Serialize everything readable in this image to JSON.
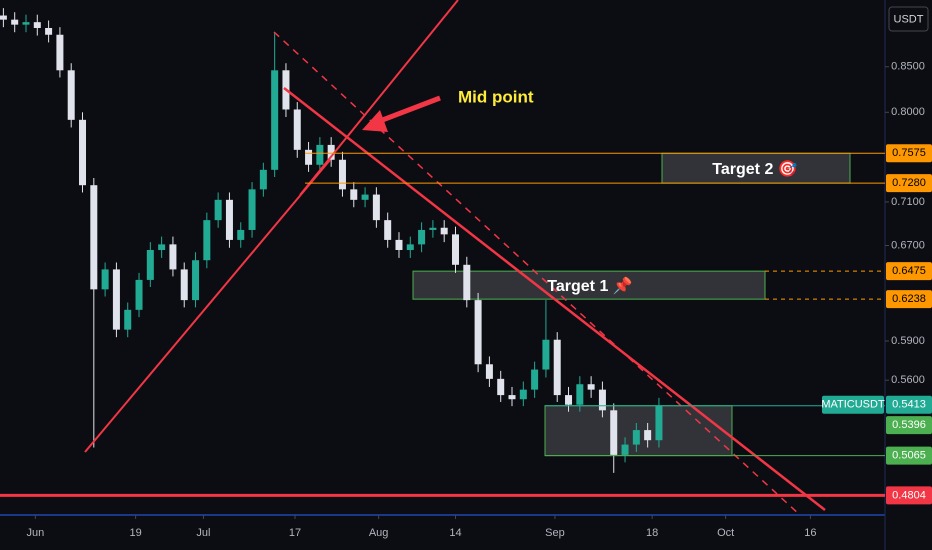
{
  "chart_data": {
    "type": "candlestick",
    "symbol": "MATICUSDT",
    "currency": "USDT",
    "log_scale": true,
    "up_color": "#22ab94",
    "down_color": "#e0e3eb",
    "series": {
      "open": [
        0.91,
        0.905,
        0.899,
        0.902,
        0.895,
        0.887,
        0.846,
        0.792,
        0.726,
        0.632,
        0.649,
        0.599,
        0.615,
        0.64,
        0.666,
        0.671,
        0.649,
        0.623,
        0.657,
        0.693,
        0.712,
        0.675,
        0.684,
        0.722,
        0.741,
        0.846,
        0.803,
        0.761,
        0.746,
        0.766,
        0.751,
        0.722,
        0.712,
        0.717,
        0.693,
        0.675,
        0.666,
        0.671,
        0.684,
        0.686,
        0.68,
        0.653,
        0.623,
        0.572,
        0.561,
        0.549,
        0.546,
        0.553,
        0.568,
        0.591,
        0.549,
        0.542,
        0.557,
        0.553,
        0.538,
        0.507,
        0.514,
        0.524,
        0.517
      ],
      "high": [
        0.919,
        0.914,
        0.911,
        0.911,
        0.904,
        0.896,
        0.854,
        0.8,
        0.733,
        0.655,
        0.655,
        0.621,
        0.646,
        0.673,
        0.678,
        0.678,
        0.655,
        0.664,
        0.7,
        0.719,
        0.719,
        0.691,
        0.729,
        0.748,
        0.889,
        0.854,
        0.811,
        0.769,
        0.774,
        0.774,
        0.759,
        0.729,
        0.724,
        0.724,
        0.7,
        0.682,
        0.678,
        0.691,
        0.693,
        0.693,
        0.687,
        0.66,
        0.629,
        0.578,
        0.567,
        0.555,
        0.559,
        0.574,
        0.623,
        0.597,
        0.555,
        0.563,
        0.563,
        0.559,
        0.543,
        0.519,
        0.529,
        0.529,
        0.547
      ],
      "low": [
        0.896,
        0.89,
        0.89,
        0.886,
        0.878,
        0.838,
        0.784,
        0.719,
        0.512,
        0.626,
        0.593,
        0.593,
        0.609,
        0.634,
        0.659,
        0.643,
        0.617,
        0.617,
        0.65,
        0.686,
        0.668,
        0.668,
        0.677,
        0.715,
        0.734,
        0.795,
        0.753,
        0.739,
        0.739,
        0.744,
        0.715,
        0.705,
        0.705,
        0.686,
        0.668,
        0.659,
        0.659,
        0.664,
        0.677,
        0.673,
        0.646,
        0.617,
        0.566,
        0.555,
        0.544,
        0.541,
        0.541,
        0.547,
        0.562,
        0.544,
        0.537,
        0.537,
        0.547,
        0.533,
        0.495,
        0.502,
        0.509,
        0.512,
        0.512
      ],
      "close": [
        0.905,
        0.899,
        0.902,
        0.895,
        0.887,
        0.846,
        0.792,
        0.726,
        0.632,
        0.649,
        0.599,
        0.615,
        0.64,
        0.666,
        0.671,
        0.649,
        0.623,
        0.657,
        0.693,
        0.712,
        0.675,
        0.684,
        0.722,
        0.741,
        0.846,
        0.803,
        0.761,
        0.746,
        0.766,
        0.751,
        0.722,
        0.712,
        0.717,
        0.693,
        0.675,
        0.666,
        0.671,
        0.684,
        0.686,
        0.68,
        0.653,
        0.623,
        0.572,
        0.561,
        0.549,
        0.546,
        0.553,
        0.568,
        0.591,
        0.549,
        0.542,
        0.557,
        0.553,
        0.538,
        0.507,
        0.514,
        0.524,
        0.517,
        0.5413
      ]
    },
    "xlim": [
      -0.3,
      78
    ],
    "xticks": [
      {
        "value": 2.83,
        "label": "Jun"
      },
      {
        "value": 11.7,
        "label": "19"
      },
      {
        "value": 17.7,
        "label": "Jul"
      },
      {
        "value": 25.8,
        "label": "17"
      },
      {
        "value": 33.2,
        "label": "Aug"
      },
      {
        "value": 40,
        "label": "14"
      },
      {
        "value": 48.8,
        "label": "Sep"
      },
      {
        "value": 57.4,
        "label": "18"
      },
      {
        "value": 63.9,
        "label": "Oct"
      },
      {
        "value": 71.4,
        "label": "16"
      }
    ],
    "ylim": [
      0.468,
      0.929
    ],
    "yticks": [
      {
        "value": 0.85,
        "label": "0.8500"
      },
      {
        "value": 0.8,
        "label": "0.8000"
      },
      {
        "value": 0.71,
        "label": "0.7100"
      },
      {
        "value": 0.67,
        "label": "0.6700"
      },
      {
        "value": 0.59,
        "label": "0.5900"
      },
      {
        "value": 0.56,
        "label": "0.5600"
      }
    ],
    "levels": [
      {
        "value": 0.7575,
        "label": "0.7575",
        "color": "#ff9800",
        "style": "solid"
      },
      {
        "value": 0.728,
        "label": "0.7280",
        "color": "#ff9800",
        "style": "solid"
      },
      {
        "value": 0.6475,
        "label": "0.6475",
        "color": "#ff9800",
        "style": "dashed"
      },
      {
        "value": 0.6238,
        "label": "0.6238",
        "color": "#ff9800",
        "style": "dashed"
      },
      {
        "value": 0.5413,
        "label": "0.5413",
        "color": "#22ab94",
        "style": "solid"
      },
      {
        "value": 0.5396,
        "label": "0.5396",
        "color": "#4caf50",
        "style": "none"
      },
      {
        "value": 0.5065,
        "label": "0.5065",
        "color": "#4caf50",
        "style": "solid"
      },
      {
        "value": 0.4804,
        "label": "0.4804",
        "color": "#f23645",
        "style": "solid"
      }
    ],
    "annotations": [
      "Mid point",
      "Target 2 🎯",
      "Target 1 📌"
    ]
  }
}
